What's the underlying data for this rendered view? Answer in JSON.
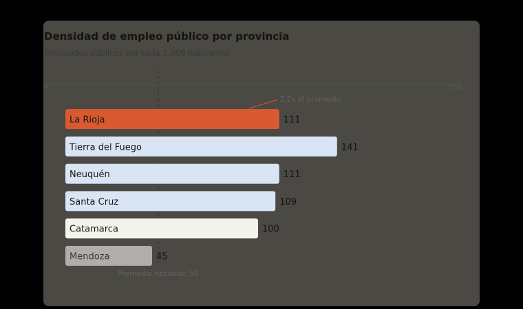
{
  "header": {
    "title": "Densidad de empleo público por provincia",
    "subtitle": "Empleados públicos por cada 1.000 habitantes"
  },
  "colors": {
    "card": "#4a4944",
    "highlight": "#d95a30",
    "high": "#d9e5f4",
    "mid": "#f4f3ec",
    "low": "#b0aeaa"
  },
  "chart_data": {
    "type": "bar",
    "orientation": "horizontal",
    "title": "Densidad de empleo público por provincia",
    "subtitle": "Empleados públicos por cada 1.000 habitantes",
    "xlim": [
      0,
      150
    ],
    "ticks": [
      {
        "value": 0,
        "label": "0"
      },
      {
        "value": 150,
        "label": "150"
      }
    ],
    "categories": [
      "La Rioja",
      "Tierra del Fuego",
      "Neuquén",
      "Santa Cruz",
      "Catamarca",
      "Mendoza"
    ],
    "values": [
      111,
      141,
      111,
      109,
      100,
      45
    ],
    "bar_colors": [
      "#d95a30",
      "#d9e5f4",
      "#d9e5f4",
      "#d9e5f4",
      "#f4f3ec",
      "#b0aeaa"
    ],
    "label_colors": [
      "#15140f",
      "#15140f",
      "#15140f",
      "#15140f",
      "#15140f",
      "#3a3934"
    ],
    "reference_line": {
      "value": 50,
      "label": "Promedio nacional: 50"
    },
    "annotations": [
      {
        "category": "La Rioja",
        "text": "2,2x el promedio"
      }
    ]
  }
}
